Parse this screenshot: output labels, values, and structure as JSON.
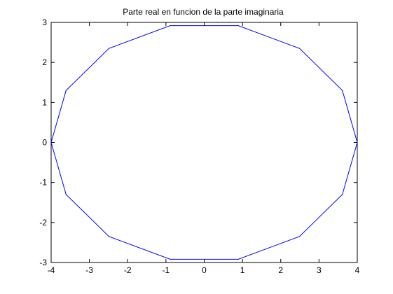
{
  "chart_data": {
    "type": "line",
    "title": "Parte real en funcion de la parte imaginaria",
    "xlabel": "",
    "ylabel": "",
    "xlim": [
      -4,
      4
    ],
    "ylim": [
      -3,
      3
    ],
    "xticks": [
      -4,
      -3,
      -2,
      -1,
      0,
      1,
      2,
      3,
      4
    ],
    "yticks": [
      -3,
      -2,
      -1,
      0,
      1,
      2,
      3
    ],
    "grid": false,
    "series": [
      {
        "color": "#0000ff",
        "x": [
          4.0,
          3.61,
          2.49,
          0.89,
          -0.89,
          -2.49,
          -3.61,
          -4.0,
          -3.61,
          -2.49,
          -0.89,
          0.89,
          2.49,
          3.61,
          4.0
        ],
        "y": [
          0.0,
          1.3,
          2.35,
          2.92,
          2.92,
          2.35,
          1.3,
          0.0,
          -1.3,
          -2.35,
          -2.92,
          -2.92,
          -2.35,
          -1.3,
          0.0
        ]
      }
    ]
  }
}
